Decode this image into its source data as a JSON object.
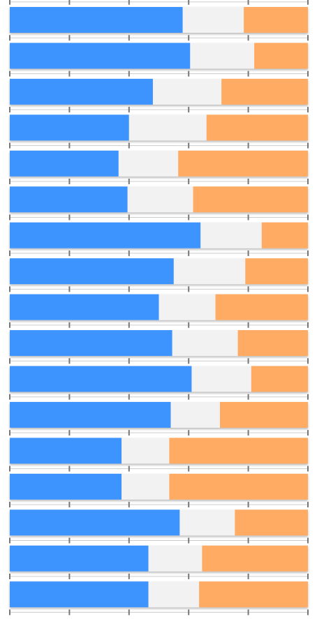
{
  "chart_data": {
    "type": "bar",
    "orientation": "horizontal",
    "stacking": "percent",
    "xlim": [
      0,
      100
    ],
    "grid": true,
    "legend": "none",
    "colors": {
      "segment_1": "#3d94ff",
      "segment_2": "#f2f2f2",
      "segment_3": "#ffab63",
      "tick": "#777777",
      "baseline": "#cccccc"
    },
    "series": [
      {
        "values": [
          58.0,
          60.5,
          48.0,
          40.0,
          36.5,
          39.5,
          64.0,
          55.0,
          50.0,
          54.5,
          61.0,
          54.0,
          37.5,
          37.5,
          57.0,
          46.5,
          46.5
        ]
      },
      {
        "values": [
          20.5,
          21.5,
          23.0,
          26.0,
          20.0,
          22.0,
          20.5,
          24.0,
          19.0,
          22.0,
          20.0,
          16.5,
          16.0,
          16.0,
          18.5,
          18.0,
          17.0
        ]
      },
      {
        "values": [
          21.5,
          18.0,
          29.0,
          34.0,
          43.5,
          38.5,
          15.5,
          21.0,
          31.0,
          23.5,
          19.0,
          29.5,
          46.5,
          46.5,
          24.5,
          35.5,
          36.5
        ]
      }
    ]
  }
}
